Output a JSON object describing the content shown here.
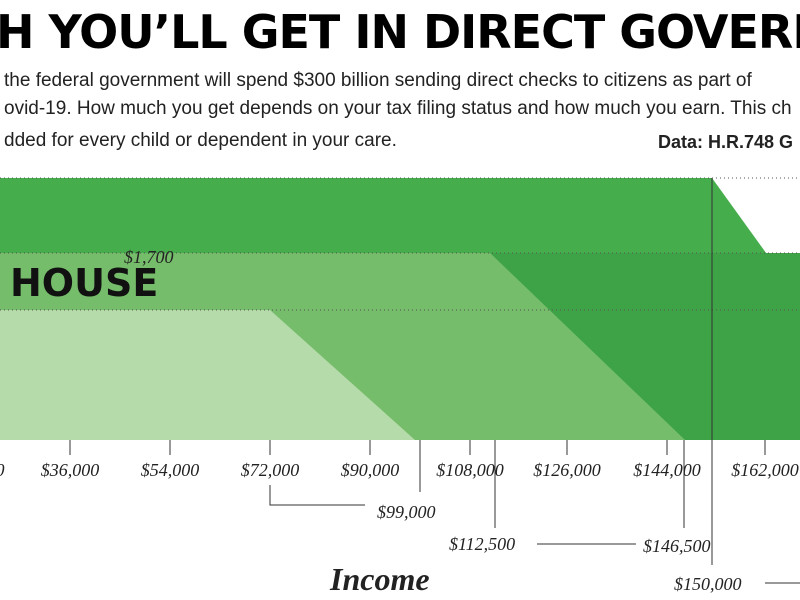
{
  "title": "H YOU’LL GET IN DIRECT GOVERNMENT PA",
  "paragraph": [
    "the federal government will spend $300 billion sending direct checks to citizens as part of",
    "ovid-19. How much you get depends on your tax filing status and how much you earn. This ch",
    "dded for every child or dependent in your care."
  ],
  "source": "Data: H.R.748 G",
  "band_label": "HOUSE",
  "band_value_label": "$1,700",
  "x_tick_labels": [
    "0",
    "$36,000",
    "$54,000",
    "$72,000",
    "$90,000",
    "$108,000",
    "$126,000",
    "$144,000",
    "$162,000"
  ],
  "annotations": [
    "$99,000",
    "$112,500",
    "$146,500",
    "$150,000"
  ],
  "x_axis_label": "Income"
}
